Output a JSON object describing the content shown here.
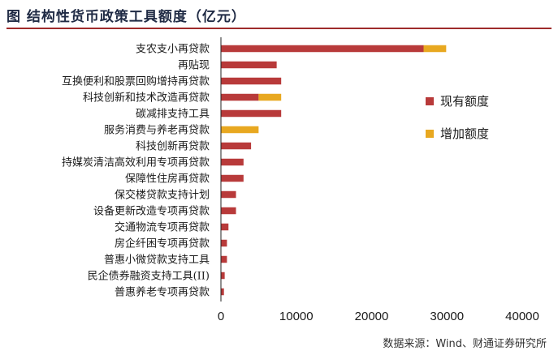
{
  "header": {
    "title": "图  结构性货币政策工具额度（亿元）"
  },
  "footer": {
    "source": "数据来源：Wind、财通证券研究所"
  },
  "colors": {
    "existing": "#b83a3a",
    "added": "#e8a820",
    "rule": "#9e2b2b"
  },
  "chart_data": {
    "type": "bar",
    "orientation": "horizontal",
    "stacked": true,
    "categories": [
      "支农支小再贷款",
      "再贴现",
      "互换便利和股票回购增持再贷款",
      "科技创新和技术改造再贷款",
      "碳减排支持工具",
      "服务消费与养老再贷款",
      "科技创新再贷款",
      "持媒炭清洁高效利用专项再贷款",
      "保障性住房再贷款",
      "保交楼贷款支持计划",
      "设备更新改造专项再贷款",
      "交通物流专项再贷款",
      "房企纤困专项再贷款",
      "普惠小微贷款支持工具",
      "民企债券融资支持工具(II)",
      "普惠养老专项再贷款"
    ],
    "series": [
      {
        "name": "现有额度",
        "values": [
          26900,
          7400,
          8000,
          5000,
          8000,
          0,
          4000,
          3000,
          3000,
          2000,
          2000,
          1000,
          800,
          800,
          500,
          400
        ]
      },
      {
        "name": "增加额度",
        "values": [
          3000,
          0,
          0,
          3000,
          0,
          5000,
          0,
          0,
          0,
          0,
          0,
          0,
          0,
          0,
          0,
          0
        ]
      }
    ],
    "xlim": [
      0,
      40000
    ],
    "xticks": [
      0,
      10000,
      20000,
      30000,
      40000
    ],
    "tick_labels": [
      "0",
      "10000",
      "20000",
      "30000",
      "40000"
    ],
    "legend": {
      "position": "right",
      "entries": [
        "现有额度",
        "增加额度"
      ]
    },
    "grid": false
  }
}
